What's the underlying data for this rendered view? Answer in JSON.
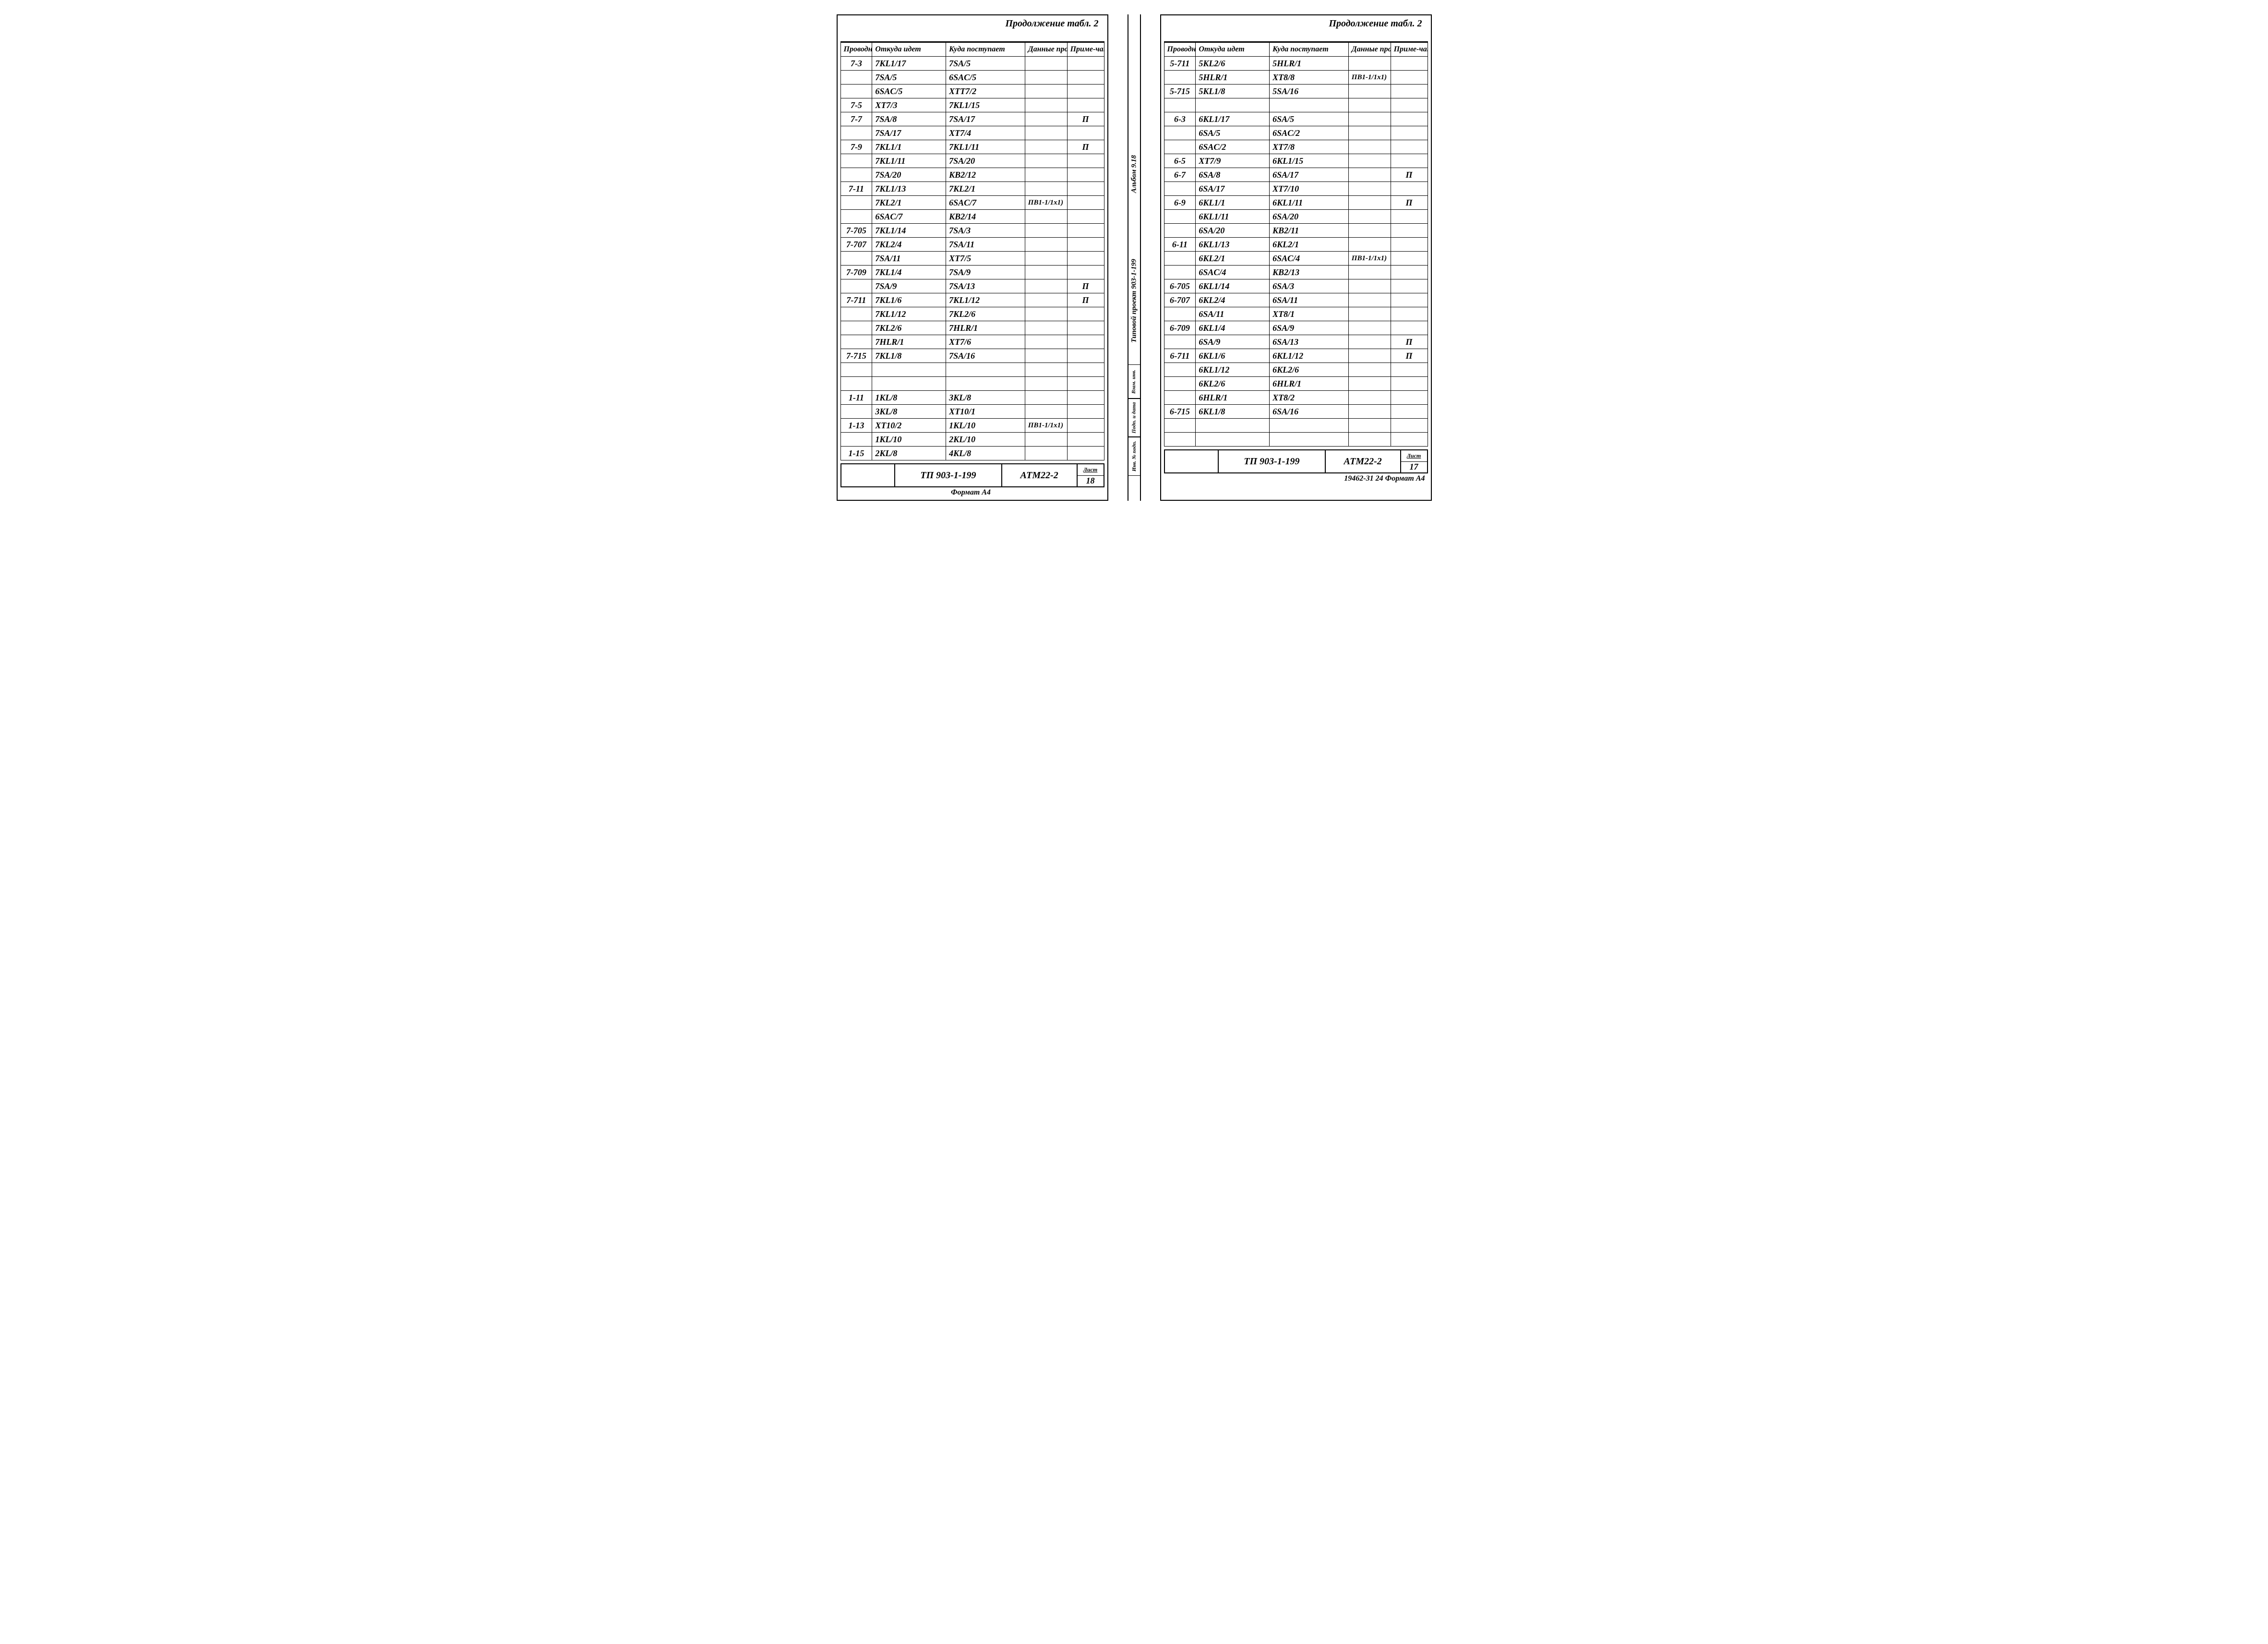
{
  "continuation_label": "Продолжение табл. 2",
  "headers": {
    "conductor": "Проводник",
    "from": "Откуда идет",
    "to": "Куда поступает",
    "wire_data": "Данные провода",
    "note": "Приме-чание"
  },
  "gutter": {
    "project": "Типовой проект 903-1-199",
    "album": "Альбом 9.18",
    "seg_top": "Взам. инв.",
    "seg_mid": "Подп. и дата",
    "seg_bot": "Инв. № подп."
  },
  "left": {
    "rows": [
      {
        "c": "7-3",
        "f": "7KL1/17",
        "t": "7SA/5",
        "d": "",
        "n": ""
      },
      {
        "c": "",
        "f": "7SA/5",
        "t": "6SAC/5",
        "d": "",
        "n": ""
      },
      {
        "c": "",
        "f": "6SAC/5",
        "t": "XTT7/2",
        "d": "",
        "n": ""
      },
      {
        "c": "7-5",
        "f": "XT7/3",
        "t": "7KL1/15",
        "d": "",
        "n": ""
      },
      {
        "c": "7-7",
        "f": "7SA/8",
        "t": "7SA/17",
        "d": "",
        "n": "П"
      },
      {
        "c": "",
        "f": "7SA/17",
        "t": "XT7/4",
        "d": "",
        "n": ""
      },
      {
        "c": "7-9",
        "f": "7KL1/1",
        "t": "7KL1/11",
        "d": "",
        "n": "П"
      },
      {
        "c": "",
        "f": "7KL1/11",
        "t": "7SA/20",
        "d": "",
        "n": ""
      },
      {
        "c": "",
        "f": "7SA/20",
        "t": "KB2/12",
        "d": "",
        "n": ""
      },
      {
        "c": "7-11",
        "f": "7KL1/13",
        "t": "7KL2/1",
        "d": "",
        "n": ""
      },
      {
        "c": "",
        "f": "7KL2/1",
        "t": "6SAC/7",
        "d": "ПВ1-1/1х1)",
        "n": ""
      },
      {
        "c": "",
        "f": "6SAC/7",
        "t": "KB2/14",
        "d": "",
        "n": ""
      },
      {
        "c": "7-705",
        "f": "7KL1/14",
        "t": "7SA/3",
        "d": "",
        "n": ""
      },
      {
        "c": "7-707",
        "f": "7KL2/4",
        "t": "7SA/11",
        "d": "",
        "n": ""
      },
      {
        "c": "",
        "f": "7SA/11",
        "t": "XT7/5",
        "d": "",
        "n": ""
      },
      {
        "c": "7-709",
        "f": "7KL1/4",
        "t": "7SA/9",
        "d": "",
        "n": ""
      },
      {
        "c": "",
        "f": "7SA/9",
        "t": "7SA/13",
        "d": "",
        "n": "П"
      },
      {
        "c": "7-711",
        "f": "7KL1/6",
        "t": "7KL1/12",
        "d": "",
        "n": "П"
      },
      {
        "c": "",
        "f": "7KL1/12",
        "t": "7KL2/6",
        "d": "",
        "n": ""
      },
      {
        "c": "",
        "f": "7KL2/6",
        "t": "7HLR/1",
        "d": "",
        "n": ""
      },
      {
        "c": "",
        "f": "7HLR/1",
        "t": "XT7/6",
        "d": "",
        "n": ""
      },
      {
        "c": "7-715",
        "f": "7KL1/8",
        "t": "7SA/16",
        "d": "",
        "n": ""
      },
      {
        "c": "",
        "f": "",
        "t": "",
        "d": "",
        "n": ""
      },
      {
        "c": "",
        "f": "",
        "t": "",
        "d": "",
        "n": ""
      },
      {
        "c": "1-11",
        "f": "1KL/8",
        "t": "3KL/8",
        "d": "",
        "n": ""
      },
      {
        "c": "",
        "f": "3KL/8",
        "t": "XT10/1",
        "d": "",
        "n": ""
      },
      {
        "c": "1-13",
        "f": "XT10/2",
        "t": "1KL/10",
        "d": "ПВ1-1/1х1)",
        "n": ""
      },
      {
        "c": "",
        "f": "1KL/10",
        "t": "2KL/10",
        "d": "",
        "n": ""
      },
      {
        "c": "1-15",
        "f": "2KL/8",
        "t": "4KL/8",
        "d": "",
        "n": ""
      }
    ],
    "footer_project": "ТП 903-1-199",
    "footer_code": "АТМ22-2",
    "sheet_label": "Лист",
    "sheet_number": "18",
    "under_footer": "Формат A4"
  },
  "right": {
    "rows": [
      {
        "c": "5-711",
        "f": "5KL2/6",
        "t": "5HLR/1",
        "d": "",
        "n": ""
      },
      {
        "c": "",
        "f": "5HLR/1",
        "t": "XT8/8",
        "d": "ПВ1-1/1х1)",
        "n": ""
      },
      {
        "c": "5-715",
        "f": "5KL1/8",
        "t": "5SA/16",
        "d": "",
        "n": ""
      },
      {
        "c": "",
        "f": "",
        "t": "",
        "d": "",
        "n": ""
      },
      {
        "c": "6-3",
        "f": "6KL1/17",
        "t": "6SA/5",
        "d": "",
        "n": ""
      },
      {
        "c": "",
        "f": "6SA/5",
        "t": "6SAC/2",
        "d": "",
        "n": ""
      },
      {
        "c": "",
        "f": "6SAC/2",
        "t": "XT7/8",
        "d": "",
        "n": ""
      },
      {
        "c": "6-5",
        "f": "XT7/9",
        "t": "6KL1/15",
        "d": "",
        "n": ""
      },
      {
        "c": "6-7",
        "f": "6SA/8",
        "t": "6SA/17",
        "d": "",
        "n": "П"
      },
      {
        "c": "",
        "f": "6SA/17",
        "t": "XT7/10",
        "d": "",
        "n": ""
      },
      {
        "c": "6-9",
        "f": "6KL1/1",
        "t": "6KL1/11",
        "d": "",
        "n": "П"
      },
      {
        "c": "",
        "f": "6KL1/11",
        "t": "6SA/20",
        "d": "",
        "n": ""
      },
      {
        "c": "",
        "f": "6SA/20",
        "t": "KB2/11",
        "d": "",
        "n": ""
      },
      {
        "c": "6-11",
        "f": "6KL1/13",
        "t": "6KL2/1",
        "d": "",
        "n": ""
      },
      {
        "c": "",
        "f": "6KL2/1",
        "t": "6SAC/4",
        "d": "ПВ1-1/1х1)",
        "n": ""
      },
      {
        "c": "",
        "f": "6SAC/4",
        "t": "KB2/13",
        "d": "",
        "n": ""
      },
      {
        "c": "6-705",
        "f": "6KL1/14",
        "t": "6SA/3",
        "d": "",
        "n": ""
      },
      {
        "c": "6-707",
        "f": "6KL2/4",
        "t": "6SA/11",
        "d": "",
        "n": ""
      },
      {
        "c": "",
        "f": "6SA/11",
        "t": "XT8/1",
        "d": "",
        "n": ""
      },
      {
        "c": "6-709",
        "f": "6KL1/4",
        "t": "6SA/9",
        "d": "",
        "n": ""
      },
      {
        "c": "",
        "f": "6SA/9",
        "t": "6SA/13",
        "d": "",
        "n": "П"
      },
      {
        "c": "6-711",
        "f": "6KL1/6",
        "t": "6KL1/12",
        "d": "",
        "n": "П"
      },
      {
        "c": "",
        "f": "6KL1/12",
        "t": "6KL2/6",
        "d": "",
        "n": ""
      },
      {
        "c": "",
        "f": "6KL2/6",
        "t": "6HLR/1",
        "d": "",
        "n": ""
      },
      {
        "c": "",
        "f": "6HLR/1",
        "t": "XT8/2",
        "d": "",
        "n": ""
      },
      {
        "c": "6-715",
        "f": "6KL1/8",
        "t": "6SA/16",
        "d": "",
        "n": ""
      },
      {
        "c": "",
        "f": "",
        "t": "",
        "d": "",
        "n": ""
      },
      {
        "c": "",
        "f": "",
        "t": "",
        "d": "",
        "n": ""
      }
    ],
    "footer_project": "ТП 903-1-199",
    "footer_code": "АТМ22-2",
    "sheet_label": "Лист",
    "sheet_number": "17",
    "under_footer": "19462-31  24       Формат A4"
  }
}
